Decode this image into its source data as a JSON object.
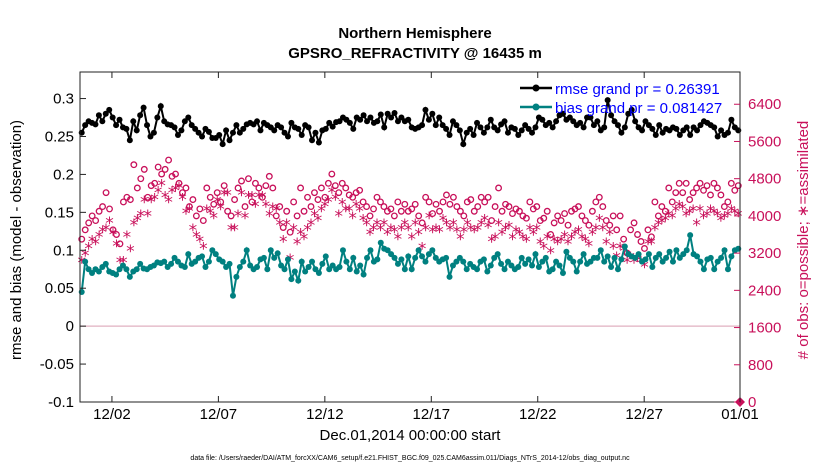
{
  "chart_data": {
    "type": "line",
    "title": "Northern Hemisphere",
    "subtitle": "GPSRO_REFRACTIVITY @ 16435 m",
    "xlabel": "Dec.01,2014 00:00:00 start",
    "ylabel": "rmse and bias (model - observation)",
    "y2label": "# of obs: o=possible; ∗=assimilated",
    "footnote": "data file: /Users/raeder/DAI/ATM_forcXX/CAM6_setup/f.e21.FHIST_BGC.f09_025.CAM6assim.011/Diags_NTrS_2014-12/obs_diag_output.nc",
    "xlim": [
      0,
      31
    ],
    "ylim": [
      -0.1,
      0.335
    ],
    "y2lim": [
      0,
      7093
    ],
    "x_ticks": [
      {
        "v": 1.5,
        "label": "12/02"
      },
      {
        "v": 6.5,
        "label": "12/07"
      },
      {
        "v": 11.5,
        "label": "12/12"
      },
      {
        "v": 16.5,
        "label": "12/17"
      },
      {
        "v": 21.5,
        "label": "12/22"
      },
      {
        "v": 26.5,
        "label": "12/27"
      },
      {
        "v": 31,
        "label": "01/01"
      }
    ],
    "y_ticks": [
      {
        "v": 0.3,
        "label": "0.3"
      },
      {
        "v": 0.25,
        "label": "0.25"
      },
      {
        "v": 0.2,
        "label": "0.2"
      },
      {
        "v": 0.15,
        "label": "0.15"
      },
      {
        "v": 0.1,
        "label": "0.1"
      },
      {
        "v": 0.05,
        "label": "0.05"
      },
      {
        "v": 0,
        "label": "0"
      },
      {
        "v": -0.05,
        "label": "-0.05"
      },
      {
        "v": -0.1,
        "label": "-0.1"
      }
    ],
    "y2_ticks": [
      {
        "v": 6400,
        "label": "6400"
      },
      {
        "v": 5600,
        "label": "5600"
      },
      {
        "v": 4800,
        "label": "4800"
      },
      {
        "v": 4000,
        "label": "4000"
      },
      {
        "v": 3200,
        "label": "3200"
      },
      {
        "v": 2400,
        "label": "2400"
      },
      {
        "v": 1600,
        "label": "1600"
      },
      {
        "v": 800,
        "label": "800"
      },
      {
        "v": 0,
        "label": "0"
      }
    ],
    "zero_line": 0,
    "series": [
      {
        "name": "rmse grand pr = 0.26391",
        "color": "#000000",
        "marker": "dot",
        "values": [
          0.255,
          0.265,
          0.27,
          0.268,
          0.266,
          0.278,
          0.27,
          0.28,
          0.285,
          0.275,
          0.265,
          0.272,
          0.262,
          0.26,
          0.245,
          0.27,
          0.258,
          0.278,
          0.288,
          0.265,
          0.25,
          0.255,
          0.275,
          0.29,
          0.27,
          0.266,
          0.265,
          0.262,
          0.252,
          0.258,
          0.27,
          0.275,
          0.265,
          0.26,
          0.255,
          0.25,
          0.26,
          0.256,
          0.248,
          0.248,
          0.252,
          0.24,
          0.258,
          0.245,
          0.255,
          0.265,
          0.255,
          0.26,
          0.266,
          0.268,
          0.266,
          0.27,
          0.258,
          0.268,
          0.265,
          0.262,
          0.258,
          0.265,
          0.262,
          0.255,
          0.25,
          0.268,
          0.262,
          0.26,
          0.252,
          0.265,
          0.262,
          0.245,
          0.255,
          0.242,
          0.258,
          0.26,
          0.268,
          0.263,
          0.269,
          0.27,
          0.275,
          0.272,
          0.268,
          0.26,
          0.275,
          0.272,
          0.278,
          0.27,
          0.275,
          0.268,
          0.27,
          0.279,
          0.262,
          0.28,
          0.275,
          0.281,
          0.27,
          0.275,
          0.27,
          0.272,
          0.262,
          0.26,
          0.262,
          0.265,
          0.285,
          0.272,
          0.28,
          0.265,
          0.275,
          0.265,
          0.26,
          0.252,
          0.27,
          0.265,
          0.258,
          0.24,
          0.255,
          0.26,
          0.252,
          0.268,
          0.262,
          0.255,
          0.262,
          0.272,
          0.262,
          0.258,
          0.266,
          0.27,
          0.255,
          0.262,
          0.26,
          0.252,
          0.258,
          0.265,
          0.26,
          0.255,
          0.262,
          0.275,
          0.272,
          0.265,
          0.268,
          0.262,
          0.27,
          0.278,
          0.28,
          0.272,
          0.275,
          0.27,
          0.265,
          0.268,
          0.262,
          0.275,
          0.275,
          0.265,
          0.27,
          0.258,
          0.262,
          0.298,
          0.278,
          0.27,
          0.265,
          0.255,
          0.262,
          0.28,
          0.285,
          0.27,
          0.262,
          0.258,
          0.27,
          0.265,
          0.26,
          0.252,
          0.265,
          0.255,
          0.26,
          0.258,
          0.262,
          0.26,
          0.252,
          0.258,
          0.262,
          0.252,
          0.262,
          0.258,
          0.265,
          0.27,
          0.268,
          0.265,
          0.262,
          0.25,
          0.258,
          0.252,
          0.255,
          0.272,
          0.262,
          0.258
        ]
      },
      {
        "name": "bias grand pr = 0.081427",
        "color": "#008080",
        "marker": "dot",
        "values": [
          0.045,
          0.085,
          0.075,
          0.07,
          0.075,
          0.072,
          0.078,
          0.082,
          0.072,
          0.07,
          0.068,
          0.075,
          0.08,
          0.075,
          0.065,
          0.072,
          0.075,
          0.082,
          0.076,
          0.075,
          0.078,
          0.08,
          0.084,
          0.083,
          0.085,
          0.078,
          0.082,
          0.09,
          0.085,
          0.08,
          0.078,
          0.095,
          0.082,
          0.085,
          0.09,
          0.092,
          0.078,
          0.085,
          0.1,
          0.095,
          0.088,
          0.085,
          0.078,
          0.082,
          0.04,
          0.065,
          0.078,
          0.085,
          0.1,
          0.08,
          0.075,
          0.078,
          0.088,
          0.09,
          0.075,
          0.1,
          0.09,
          0.096,
          0.08,
          0.075,
          0.088,
          0.062,
          0.072,
          0.06,
          0.085,
          0.072,
          0.078,
          0.085,
          0.075,
          0.07,
          0.082,
          0.092,
          0.075,
          0.08,
          0.075,
          0.078,
          0.1,
          0.085,
          0.075,
          0.09,
          0.072,
          0.08,
          0.068,
          0.09,
          0.1,
          0.085,
          0.088,
          0.11,
          0.102,
          0.1,
          0.095,
          0.09,
          0.082,
          0.088,
          0.075,
          0.092,
          0.075,
          0.09,
          0.1,
          0.092,
          0.085,
          0.095,
          0.1,
          0.09,
          0.085,
          0.088,
          0.09,
          0.065,
          0.08,
          0.085,
          0.09,
          0.085,
          0.075,
          0.082,
          0.078,
          0.075,
          0.085,
          0.088,
          0.072,
          0.08,
          0.09,
          0.095,
          0.082,
          0.075,
          0.085,
          0.08,
          0.075,
          0.078,
          0.09,
          0.082,
          0.088,
          0.08,
          0.095,
          0.078,
          0.085,
          0.09,
          0.072,
          0.075,
          0.085,
          0.08,
          0.07,
          0.098,
          0.09,
          0.085,
          0.072,
          0.085,
          0.095,
          0.082,
          0.085,
          0.09,
          0.09,
          0.1,
          0.085,
          0.092,
          0.078,
          0.09,
          0.075,
          0.088,
          0.105,
          0.095,
          0.092,
          0.09,
          0.095,
          0.085,
          0.088,
          0.095,
          0.078,
          0.09,
          0.095,
          0.085,
          0.09,
          0.098,
          0.085,
          0.1,
          0.09,
          0.095,
          0.1,
          0.12,
          0.095,
          0.092,
          0.085,
          0.075,
          0.088,
          0.09,
          0.075,
          0.085,
          0.09,
          0.1,
          0.075,
          0.092,
          0.1,
          0.102
        ]
      },
      {
        "name": "possible",
        "color": "#c8105a",
        "marker": "o",
        "values": [
          3500,
          3700,
          3850,
          4000,
          3900,
          4100,
          4200,
          4500,
          4150,
          3700,
          3600,
          3400,
          4300,
          4400,
          4350,
          5100,
          4600,
          4800,
          5000,
          4400,
          4650,
          4700,
          5050,
          4900,
          5000,
          5200,
          4850,
          4900,
          4700,
          4500,
          4600,
          4200,
          4350,
          4000,
          4150,
          3900,
          4600,
          4400,
          4250,
          4500,
          4300,
          4650,
          4100,
          4000,
          4350,
          4600,
          4750,
          4200,
          4800,
          4300,
          4700,
          4600,
          4400,
          4650,
          4850,
          4600,
          4000,
          4200,
          3750,
          4100,
          3650,
          4300,
          4000,
          4600,
          4100,
          4400,
          4200,
          4500,
          4350,
          4600,
          4400,
          4700,
          4900,
          4650,
          4500,
          4700,
          4600,
          4450,
          4400,
          4500,
          4550,
          4300,
          4200,
          4000,
          4150,
          4400,
          4300,
          4200,
          4100,
          4150,
          4000,
          4300,
          4100,
          4250,
          4100,
          4150,
          4250,
          4000,
          3850,
          4400,
          4300,
          4050,
          4250,
          4100,
          4300,
          4450,
          4250,
          4400,
          4200,
          4100,
          4000,
          4300,
          4350,
          4100,
          4200,
          4400,
          4300,
          4400,
          3900,
          4200,
          4600,
          4100,
          4250,
          4200,
          4050,
          4150,
          4100,
          4000,
          3950,
          4300,
          4150,
          4200,
          3900,
          3950,
          4100,
          3600,
          3850,
          4000,
          3900,
          4050,
          3800,
          4100,
          4150,
          4200,
          4000,
          3900,
          3800,
          4100,
          4300,
          4400,
          4200,
          3900,
          3800,
          4000,
          3700,
          4000,
          3500,
          3200,
          3700,
          3850,
          3600,
          3450,
          3300,
          3700,
          3550,
          4300,
          4000,
          4200,
          4100,
          4600,
          4300,
          4500,
          4700,
          4500,
          4700,
          4350,
          4500,
          4600,
          4700,
          4550,
          4650,
          4450,
          4700,
          4600,
          4450,
          4200,
          4300,
          4700,
          4550,
          4650
        ]
      },
      {
        "name": "assimilated",
        "color": "#c8105a",
        "marker": "*",
        "values": [
          3000,
          3150,
          3300,
          3450,
          3400,
          3550,
          3650,
          3700,
          3850,
          3600,
          3350,
          3000,
          3000,
          3550,
          3250,
          3800,
          3900,
          4000,
          4300,
          4000,
          4300,
          4350,
          4500,
          4650,
          4400,
          4300,
          4500,
          4550,
          4600,
          4350,
          4050,
          4100,
          3700,
          3550,
          3450,
          3300,
          4100,
          4050,
          3950,
          4300,
          4150,
          4450,
          4450,
          3700,
          3700,
          4000,
          4450,
          3950,
          4400,
          4400,
          4200,
          4400,
          4400,
          4200,
          4000,
          4150,
          4100,
          3800,
          3450,
          3800,
          3050,
          3700,
          3400,
          3600,
          3500,
          3700,
          3800,
          4000,
          3900,
          4100,
          4200,
          4300,
          4500,
          4350,
          4000,
          4250,
          4100,
          4100,
          3950,
          4200,
          4100,
          3900,
          3800,
          3600,
          3700,
          3800,
          3700,
          3800,
          3600,
          3700,
          3650,
          3500,
          3700,
          3800,
          3700,
          3500,
          3800,
          3600,
          3300,
          3700,
          3950,
          3650,
          3700,
          3650,
          3900,
          3800,
          3700,
          3800,
          3650,
          3500,
          3650,
          3800,
          3700,
          3650,
          3700,
          3800,
          3900,
          3750,
          3450,
          3500,
          3800,
          3600,
          3700,
          3750,
          3500,
          3650,
          3600,
          3500,
          3450,
          3700,
          3600,
          3700,
          3400,
          3300,
          3500,
          3200,
          3450,
          3400,
          3450,
          3550,
          3400,
          3500,
          3600,
          3650,
          3500,
          3450,
          3350,
          3600,
          3700,
          3900,
          3700,
          3400,
          3600,
          3300,
          3100,
          3300,
          3250,
          3000,
          3100,
          3000,
          3050,
          3000,
          2900,
          3400,
          3400,
          3700,
          3800,
          3850,
          3900,
          4000,
          3950,
          4100,
          4200,
          4150,
          4000,
          4050,
          4100,
          3800,
          4100,
          3950,
          4000,
          4100,
          4050,
          4000,
          3900,
          3950,
          4000,
          4100,
          4050,
          4000
        ]
      }
    ],
    "extra_marker": {
      "x": 31,
      "y2": 0,
      "color": "#c8105a",
      "shape": "diamond"
    }
  }
}
